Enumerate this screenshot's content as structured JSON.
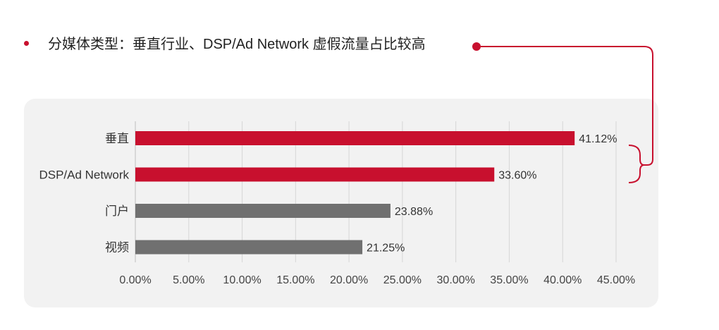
{
  "heading": {
    "text": "分媒体类型：垂直行业、DSP/Ad Network 虚假流量占比较高"
  },
  "colors": {
    "highlight": "#c8102e",
    "neutral": "#707070",
    "grid": "#d6d6d6",
    "panel": "#f2f2f2"
  },
  "chart_data": {
    "type": "bar",
    "orientation": "horizontal",
    "categories": [
      "垂直",
      "DSP/Ad Network",
      "门户",
      "视频"
    ],
    "values": [
      41.12,
      33.6,
      23.88,
      21.25
    ],
    "value_labels": [
      "41.12%",
      "33.60%",
      "23.88%",
      "21.25%"
    ],
    "bar_colors": [
      "#c8102e",
      "#c8102e",
      "#707070",
      "#707070"
    ],
    "xlim": [
      0,
      45
    ],
    "x_ticks": [
      0,
      5,
      10,
      15,
      20,
      25,
      30,
      35,
      40,
      45
    ],
    "x_tick_labels": [
      "0.00%",
      "5.00%",
      "10.00%",
      "15.00%",
      "20.00%",
      "25.00%",
      "30.00%",
      "35.00%",
      "40.00%",
      "45.00%"
    ],
    "grid": true,
    "legend": "none"
  }
}
